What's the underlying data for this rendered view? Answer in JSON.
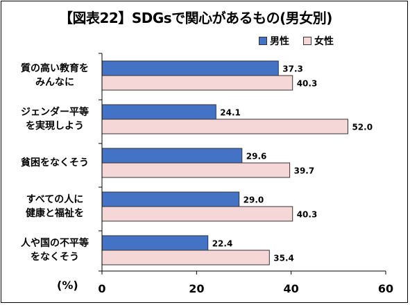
{
  "title": "【図表22】SDGsで関心があるもの(男女別)",
  "legend": [
    {
      "name": "男性",
      "color": "#4472C4"
    },
    {
      "name": "女性",
      "color": "#F5D7D7"
    }
  ],
  "unit_label": "(%)",
  "chart_data": {
    "type": "bar",
    "orientation": "horizontal",
    "title": "【図表22】SDGsで関心があるもの(男女別)",
    "categories": [
      [
        "質の高い教育を",
        "みんなに"
      ],
      [
        "ジェンダー平等",
        "を実現しよう"
      ],
      [
        "貧困をなくそう"
      ],
      [
        "すべての人に",
        "健康と福祉を"
      ],
      [
        "人や国の不平等",
        "をなくそう"
      ]
    ],
    "series": [
      {
        "name": "男性",
        "color": "#4472C4",
        "values": [
          37.3,
          24.1,
          29.6,
          29.0,
          22.4
        ]
      },
      {
        "name": "女性",
        "color": "#F5D7D7",
        "values": [
          40.3,
          52.0,
          39.7,
          40.3,
          35.4
        ]
      }
    ],
    "xlim": [
      0,
      60
    ],
    "xticks": [
      0,
      20,
      40,
      60
    ],
    "xlabel": "(%)",
    "ylabel": "",
    "legend_position": "top-right",
    "grid": false
  }
}
